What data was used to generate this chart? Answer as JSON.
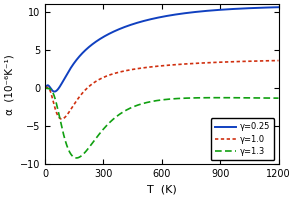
{
  "title": "",
  "xlabel": "T  (K)",
  "ylabel": "α  (10⁻⁶K⁻¹)",
  "xlim": [
    0,
    1200
  ],
  "ylim": [
    -10,
    11
  ],
  "yticks": [
    -10,
    -5,
    0,
    5,
    10
  ],
  "xticks": [
    0,
    300,
    600,
    900,
    1200
  ],
  "background_color": "#ffffff",
  "legend": [
    {
      "label": "γ=0.25",
      "color": "#1040c0",
      "linestyle": "solid"
    },
    {
      "label": "γ=1.0",
      "color": "#d03010",
      "linestyle": "dotted"
    },
    {
      "label": "γ=1.3",
      "color": "#10a010",
      "linestyle": "dashed"
    }
  ]
}
